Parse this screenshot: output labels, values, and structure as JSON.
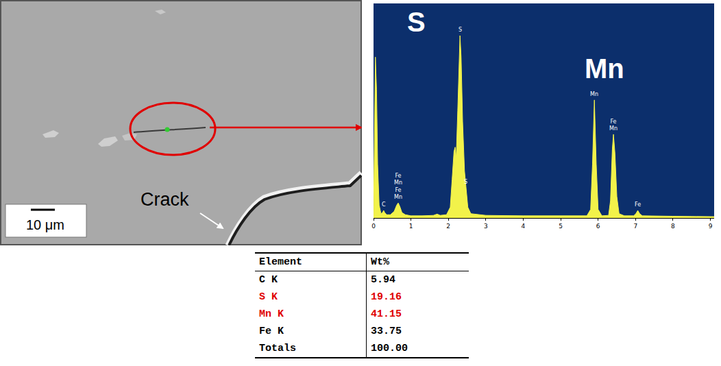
{
  "micrograph": {
    "label": "Crack",
    "scale_bar": "10 μm"
  },
  "chart_data": {
    "type": "area",
    "color": "#f2f24a",
    "background": "#0c2f6c",
    "x": [
      0.0,
      0.02,
      0.05,
      0.08,
      0.11,
      0.15,
      0.2,
      0.24,
      0.27,
      0.3,
      0.35,
      0.45,
      0.55,
      0.62,
      0.66,
      0.7,
      0.76,
      0.85,
      1.0,
      1.3,
      1.6,
      1.7,
      1.78,
      1.95,
      2.05,
      2.1,
      2.15,
      2.18,
      2.21,
      2.25,
      2.29,
      2.31,
      2.34,
      2.38,
      2.43,
      2.47,
      2.52,
      2.6,
      2.8,
      3.0,
      4.0,
      5.0,
      5.7,
      5.8,
      5.85,
      5.9,
      5.95,
      6.0,
      6.1,
      6.28,
      6.33,
      6.38,
      6.41,
      6.45,
      6.5,
      6.56,
      6.7,
      6.95,
      7.01,
      7.06,
      7.11,
      7.18,
      7.6,
      8.0,
      8.5,
      9.1
    ],
    "values": [
      0,
      40,
      75,
      60,
      25,
      6,
      2,
      2.5,
      3.5,
      2.5,
      1.5,
      1.5,
      3,
      6,
      7,
      5.5,
      2.5,
      1.5,
      1,
      1,
      1.2,
      1.8,
      1.2,
      1.5,
      5,
      18,
      31,
      33,
      28,
      50,
      80,
      85,
      75,
      45,
      22,
      14,
      5,
      2,
      1.5,
      1.2,
      1,
      1,
      1,
      4,
      25,
      55,
      25,
      4,
      1,
      1.2,
      8,
      32,
      39,
      30,
      10,
      2,
      1,
      1,
      2,
      3.5,
      2,
      1,
      0.8,
      0.8,
      0.7,
      0.6
    ],
    "xlim": [
      0,
      9.1
    ],
    "ylim": [
      0,
      100
    ],
    "xticks": [
      0,
      1,
      2,
      3,
      4,
      5,
      6,
      7,
      8,
      9
    ],
    "tick_labels": "x",
    "grid": false,
    "peak_labels": [
      {
        "text": [
          "C"
        ],
        "x": 0.27
      },
      {
        "text": [
          "Fe",
          "Mn",
          "Fe",
          "Mn"
        ],
        "x": 0.66
      },
      {
        "text": [
          "S"
        ],
        "x": 2.31
      },
      {
        "text": [
          "S"
        ],
        "x": 2.47
      },
      {
        "text": [
          "Mn"
        ],
        "x": 5.9
      },
      {
        "text": [
          "Fe",
          "Mn"
        ],
        "x": 6.41
      },
      {
        "text": [
          "Fe"
        ],
        "x": 7.06
      }
    ],
    "element_labels": [
      {
        "text": "S",
        "x": 2.31
      },
      {
        "text": "Mn",
        "x": 5.9
      }
    ]
  },
  "table": {
    "header": [
      "Element",
      "Wt%"
    ],
    "rows": [
      [
        "C K",
        "5.94"
      ],
      [
        "S K",
        "19.16"
      ],
      [
        "Mn K",
        "41.15"
      ],
      [
        "Fe K",
        "33.75"
      ],
      [
        "Totals",
        "100.00"
      ]
    ],
    "highlight_rows": [
      1,
      2
    ],
    "highlight_color": "#e00000"
  }
}
